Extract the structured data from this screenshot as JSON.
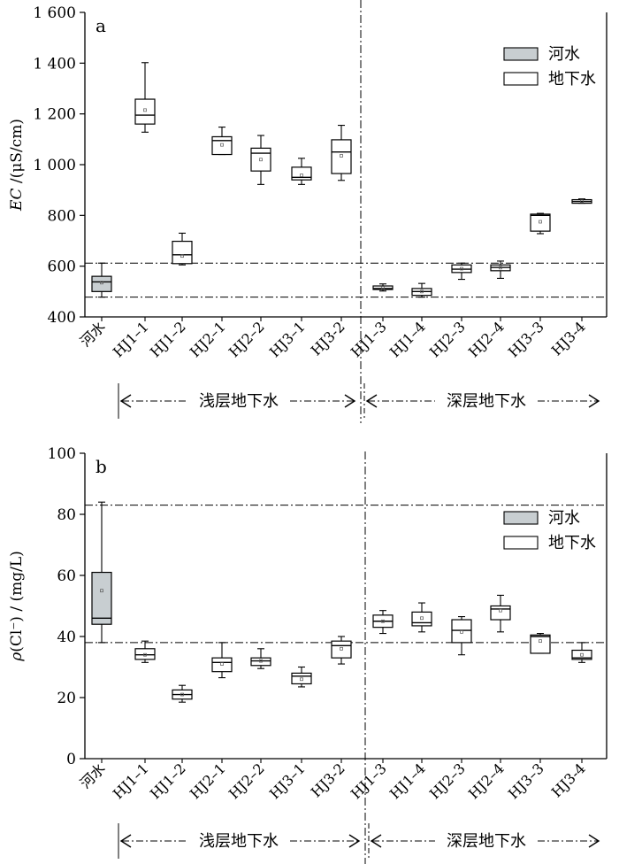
{
  "chart_data": [
    {
      "type": "box",
      "panel_label": "a",
      "ylabel": "EC /(μS/cm)",
      "ylim": [
        400,
        1600
      ],
      "yticks": [
        400,
        600,
        800,
        1000,
        1200,
        1400,
        1600
      ],
      "ytick_labels": [
        "400",
        "600",
        "800",
        "1 000",
        "1 200",
        "1 400",
        "1 600"
      ],
      "categories": [
        "河水",
        "HJ1–1",
        "HJ1–2",
        "HJ2–1",
        "HJ2–2",
        "HJ3–1",
        "HJ3-2",
        "HJ1–3",
        "HJ1–4",
        "HJ2–3",
        "HJ2–4",
        "HJ3–3",
        "HJ3-4"
      ],
      "boxes": [
        {
          "min": 478,
          "q1": 500,
          "median": 538,
          "q3": 560,
          "max": 612,
          "mean": 535,
          "type": "river"
        },
        {
          "min": 1128,
          "q1": 1160,
          "median": 1195,
          "q3": 1258,
          "max": 1402,
          "mean": 1215,
          "type": "groundwater"
        },
        {
          "min": 605,
          "q1": 610,
          "median": 645,
          "q3": 698,
          "max": 730,
          "mean": 640,
          "type": "groundwater"
        },
        {
          "min": 1040,
          "q1": 1040,
          "median": 1095,
          "q3": 1110,
          "max": 1148,
          "mean": 1078,
          "type": "groundwater"
        },
        {
          "min": 922,
          "q1": 975,
          "median": 1045,
          "q3": 1065,
          "max": 1115,
          "mean": 1020,
          "type": "groundwater"
        },
        {
          "min": 922,
          "q1": 940,
          "median": 950,
          "q3": 990,
          "max": 1025,
          "mean": 958,
          "type": "groundwater"
        },
        {
          "min": 938,
          "q1": 965,
          "median": 1050,
          "q3": 1098,
          "max": 1155,
          "mean": 1035,
          "type": "groundwater"
        },
        {
          "min": 502,
          "q1": 508,
          "median": 512,
          "q3": 522,
          "max": 530,
          "mean": 515,
          "type": "groundwater"
        },
        {
          "min": 478,
          "q1": 485,
          "median": 500,
          "q3": 512,
          "max": 532,
          "mean": 500,
          "type": "groundwater"
        },
        {
          "min": 548,
          "q1": 575,
          "median": 588,
          "q3": 605,
          "max": 612,
          "mean": 590,
          "type": "groundwater"
        },
        {
          "min": 552,
          "q1": 582,
          "median": 595,
          "q3": 605,
          "max": 620,
          "mean": 594,
          "type": "groundwater"
        },
        {
          "min": 728,
          "q1": 738,
          "median": 800,
          "q3": 805,
          "max": 808,
          "mean": 775,
          "type": "groundwater"
        },
        {
          "min": 848,
          "q1": 848,
          "median": 855,
          "q3": 862,
          "max": 865,
          "mean": 856,
          "type": "groundwater"
        }
      ],
      "reference_lines": [
        612,
        478
      ],
      "legend": [
        {
          "label": "河水",
          "color": "#c8ced1"
        },
        {
          "label": "地下水",
          "color": "#ffffff"
        }
      ],
      "legend_position": "top-right",
      "group_labels": [
        "浅层地下水",
        "深层地下水"
      ]
    },
    {
      "type": "box",
      "panel_label": "b",
      "ylabel": "ρ(Cl⁻) / (mg/L)",
      "ylim": [
        0,
        100
      ],
      "yticks": [
        0,
        20,
        40,
        60,
        80,
        100
      ],
      "ytick_labels": [
        "0",
        "20",
        "40",
        "60",
        "80",
        "100"
      ],
      "categories": [
        "河水",
        "HJ1–1",
        "HJ1–2",
        "HJ2–1",
        "HJ2–2",
        "HJ3–1",
        "HJ3-2",
        "HJ1–3",
        "HJ1–4",
        "HJ2–3",
        "HJ2–4",
        "HJ3–3",
        "HJ3-4"
      ],
      "boxes": [
        {
          "min": 38,
          "q1": 44,
          "median": 46,
          "q3": 61,
          "max": 84,
          "mean": 55,
          "type": "river"
        },
        {
          "min": 31.5,
          "q1": 32.5,
          "median": 34,
          "q3": 36,
          "max": 38.5,
          "mean": 34,
          "type": "groundwater"
        },
        {
          "min": 18.5,
          "q1": 19.5,
          "median": 21,
          "q3": 22.5,
          "max": 24,
          "mean": 21,
          "type": "groundwater"
        },
        {
          "min": 26.5,
          "q1": 28.5,
          "median": 31.5,
          "q3": 33,
          "max": 38,
          "mean": 31,
          "type": "groundwater"
        },
        {
          "min": 29.5,
          "q1": 30.5,
          "median": 32,
          "q3": 33,
          "max": 36,
          "mean": 32,
          "type": "groundwater"
        },
        {
          "min": 23.5,
          "q1": 24.5,
          "median": 27,
          "q3": 28,
          "max": 30,
          "mean": 26,
          "type": "groundwater"
        },
        {
          "min": 31,
          "q1": 33,
          "median": 37,
          "q3": 38.5,
          "max": 40,
          "mean": 36,
          "type": "groundwater"
        },
        {
          "min": 41,
          "q1": 43,
          "median": 45,
          "q3": 47,
          "max": 48.5,
          "mean": 45,
          "type": "groundwater"
        },
        {
          "min": 41.5,
          "q1": 43.5,
          "median": 44.5,
          "q3": 48,
          "max": 51,
          "mean": 46,
          "type": "groundwater"
        },
        {
          "min": 34,
          "q1": 38,
          "median": 42,
          "q3": 45.5,
          "max": 46.5,
          "mean": 41.5,
          "type": "groundwater"
        },
        {
          "min": 41.5,
          "q1": 45.5,
          "median": 49,
          "q3": 50,
          "max": 53.5,
          "mean": 48.5,
          "type": "groundwater"
        },
        {
          "min": 34.5,
          "q1": 34.5,
          "median": 40,
          "q3": 40.5,
          "max": 41,
          "mean": 38.5,
          "type": "groundwater"
        },
        {
          "min": 31.5,
          "q1": 32.5,
          "median": 33,
          "q3": 35.5,
          "max": 38,
          "mean": 34,
          "type": "groundwater"
        }
      ],
      "reference_lines": [
        83,
        38
      ],
      "legend": [
        {
          "label": "河水",
          "color": "#c8ced1"
        },
        {
          "label": "地下水",
          "color": "#ffffff"
        }
      ],
      "legend_position": "top-right",
      "group_labels": [
        "浅层地下水",
        "深层地下水"
      ]
    }
  ]
}
